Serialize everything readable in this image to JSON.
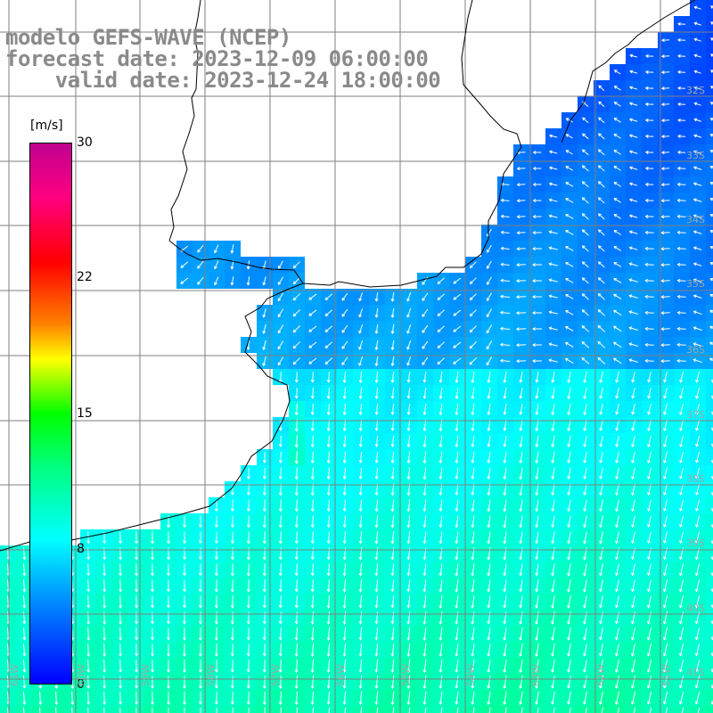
{
  "title": {
    "line1": "modelo GEFS-WAVE (NCEP)",
    "line2": "forecast date: 2023-12-09 06:00:00",
    "line3": "    valid date: 2023-12-24 18:00:00"
  },
  "colorbar": {
    "unit": "[m/s]",
    "ticks": [
      "30",
      "22",
      "15",
      "8",
      "0"
    ],
    "tick_values": [
      30,
      22,
      15,
      8,
      0
    ],
    "range": [
      0,
      30
    ]
  },
  "lat_labels": [
    "32S",
    "33S",
    "34S",
    "35S",
    "36S",
    "37S",
    "38S",
    "39S",
    "40S",
    "41S"
  ],
  "lon_labels": [
    "61W",
    "60W",
    "59W",
    "58W",
    "57W",
    "56W",
    "55W",
    "54W",
    "53W",
    "52W",
    "51W"
  ],
  "colors": {
    "land": "#ffffff",
    "grid": "#808080",
    "coast": "#000000",
    "arrow": "#ffffff",
    "title": "#8a8a8a"
  }
}
